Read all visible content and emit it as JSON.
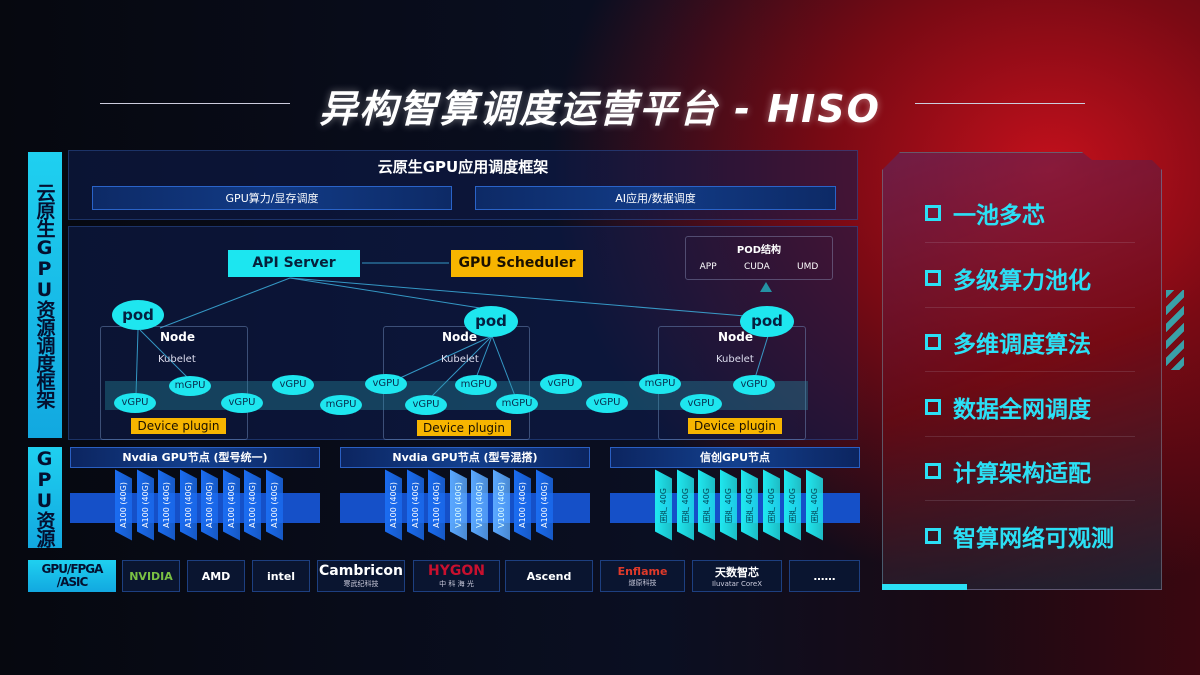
{
  "title": "异构智算调度运营平台 - HISO",
  "left_labels": {
    "framework": "云原生GPU资源调度框架",
    "resources": "GPU资源"
  },
  "app_framework": {
    "title": "云原生GPU应用调度框架",
    "items": [
      "GPU算力/显存调度",
      "AI应用/数据调度"
    ]
  },
  "scheduler": {
    "api_server": "API Server",
    "gpu_scheduler": "GPU Scheduler",
    "pod_structure": {
      "title": "POD结构",
      "items": [
        "APP",
        "CUDA",
        "UMD"
      ]
    },
    "pod_label": "pod",
    "node_label": "Node",
    "kubelet_label": "Kubelet",
    "device_plugin": "Device plugin",
    "gpu_units": [
      "vGPU",
      "mGPU",
      "vGPU",
      "vGPU",
      "mGPU",
      "vGPU",
      "vGPU",
      "mGPU",
      "mGPU",
      "vGPU",
      "vGPU",
      "mGPU",
      "vGPU",
      "vGPU"
    ]
  },
  "gpu_nodes": [
    {
      "title": "Nvdia GPU节点 (型号统一)",
      "chips": [
        "A100 (40G)",
        "A100 (40G)",
        "A100 (40G)",
        "A100 (40G)",
        "A100 (40G)",
        "A100 (40G)",
        "A100 (40G)",
        "A100 (40G)"
      ]
    },
    {
      "title": "Nvdia GPU节点 (型号混搭)",
      "chips": [
        "A100 (40G)",
        "A100 (40G)",
        "A100 (40G)",
        "V100 (40G)",
        "V100 (40G)",
        "V100 (40G)",
        "A100 (40G)",
        "A100 (40G)"
      ]
    },
    {
      "title": "信创GPU节点",
      "chips": [
        "国产 40G",
        "国产 40G",
        "国产 40G",
        "国产 40G",
        "国产 40G",
        "国产 40G",
        "国产 40G",
        "国产 40G"
      ]
    }
  ],
  "vendors": {
    "label": "GPU/FPGA /ASIC",
    "items": [
      {
        "name": "NVIDIA",
        "sub": ""
      },
      {
        "name": "AMD",
        "sub": ""
      },
      {
        "name": "intel",
        "sub": ""
      },
      {
        "name": "Cambricon",
        "sub": "寒武纪科技"
      },
      {
        "name": "HYGON",
        "sub": "中 科 海 光"
      },
      {
        "name": "Ascend",
        "sub": ""
      },
      {
        "name": "Enflame",
        "sub": "燧原科技"
      },
      {
        "name": "天数智芯",
        "sub": "Iluvatar CoreX"
      },
      {
        "name": "……",
        "sub": ""
      }
    ]
  },
  "features": [
    "一池多芯",
    "多级算力池化",
    "多维调度算法",
    "数据全网调度",
    "计算架构适配",
    "智算网络可观测"
  ],
  "colors": {
    "cyan": "#1ee6ef",
    "yellow": "#f7b500",
    "blue": "#1550c8",
    "red": "#c3101c"
  }
}
